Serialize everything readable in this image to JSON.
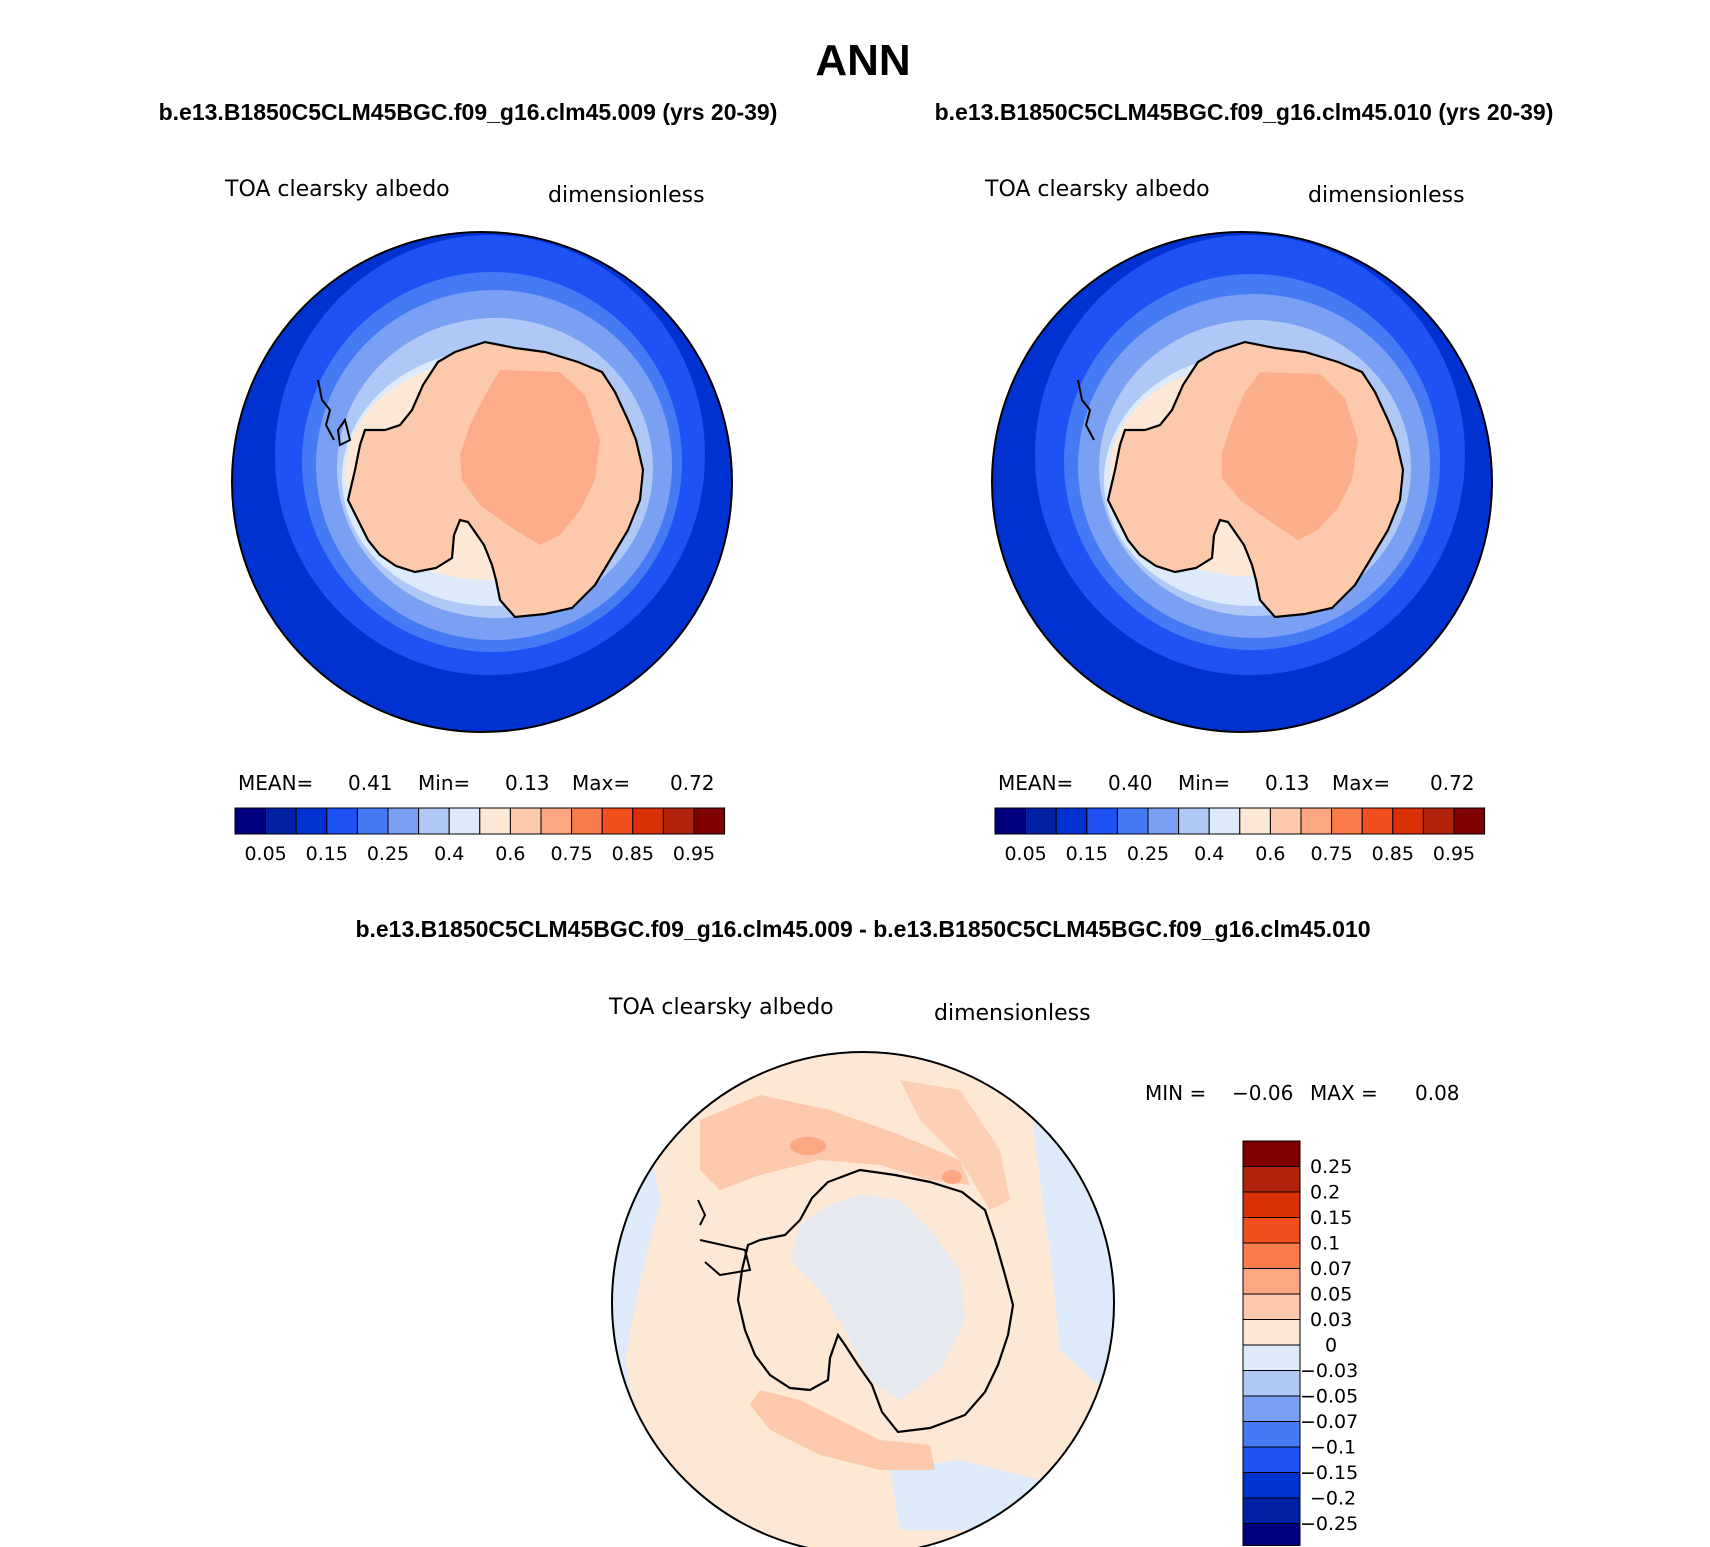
{
  "title": "ANN",
  "colors": {
    "seq": [
      "#00007f",
      "#0021a6",
      "#0032d2",
      "#1e52f4",
      "#4679f4",
      "#7aa0f4",
      "#b0c8f6",
      "#dceafa",
      "#fde8d6",
      "#fdc9ad",
      "#fba781",
      "#f97c4a",
      "#f24f1f",
      "#da3006",
      "#b3230b",
      "#7f0000"
    ],
    "diff": [
      "#00007f",
      "#0021a6",
      "#0032d2",
      "#1e52f4",
      "#4679f4",
      "#7aa0f4",
      "#b0c8f6",
      "#dceafa",
      "#fde8d6",
      "#fdc9ad",
      "#fba781",
      "#f97c4a",
      "#f24f1f",
      "#da3006",
      "#b3230b",
      "#7f0000"
    ]
  },
  "panels": [
    {
      "case_title": "b.e13.B1850C5CLM45BGC.f09_g16.clm45.009 (yrs 20-39)",
      "variable": "TOA clearsky albedo",
      "units": "dimensionless",
      "mean_label": "MEAN=",
      "mean_value": "0.41",
      "min_label": "Min=",
      "min_value": "0.13",
      "max_label": "Max=",
      "max_value": "0.72",
      "colorbar_ticks": [
        "0.05",
        "0.15",
        "0.25",
        "0.4",
        "0.6",
        "0.75",
        "0.85",
        "0.95"
      ]
    },
    {
      "case_title": "b.e13.B1850C5CLM45BGC.f09_g16.clm45.010 (yrs 20-39)",
      "variable": "TOA clearsky albedo",
      "units": "dimensionless",
      "mean_label": "MEAN=",
      "mean_value": "0.40",
      "min_label": "Min=",
      "min_value": "0.13",
      "max_label": "Max=",
      "max_value": "0.72",
      "colorbar_ticks": [
        "0.05",
        "0.15",
        "0.25",
        "0.4",
        "0.6",
        "0.75",
        "0.85",
        "0.95"
      ]
    }
  ],
  "diff": {
    "title": "b.e13.B1850C5CLM45BGC.f09_g16.clm45.009 - b.e13.B1850C5CLM45BGC.f09_g16.clm45.010",
    "variable": "TOA clearsky albedo",
    "units": "dimensionless",
    "min_label": "MIN =",
    "min_value": "−0.06",
    "max_label": "MAX =",
    "max_value": "0.08",
    "colorbar_ticks": [
      "0.25",
      "0.2",
      "0.15",
      "0.1",
      "0.07",
      "0.05",
      "0.03",
      "0",
      "−0.03",
      "−0.05",
      "−0.07",
      "−0.1",
      "−0.15",
      "−0.2",
      "−0.25"
    ]
  }
}
